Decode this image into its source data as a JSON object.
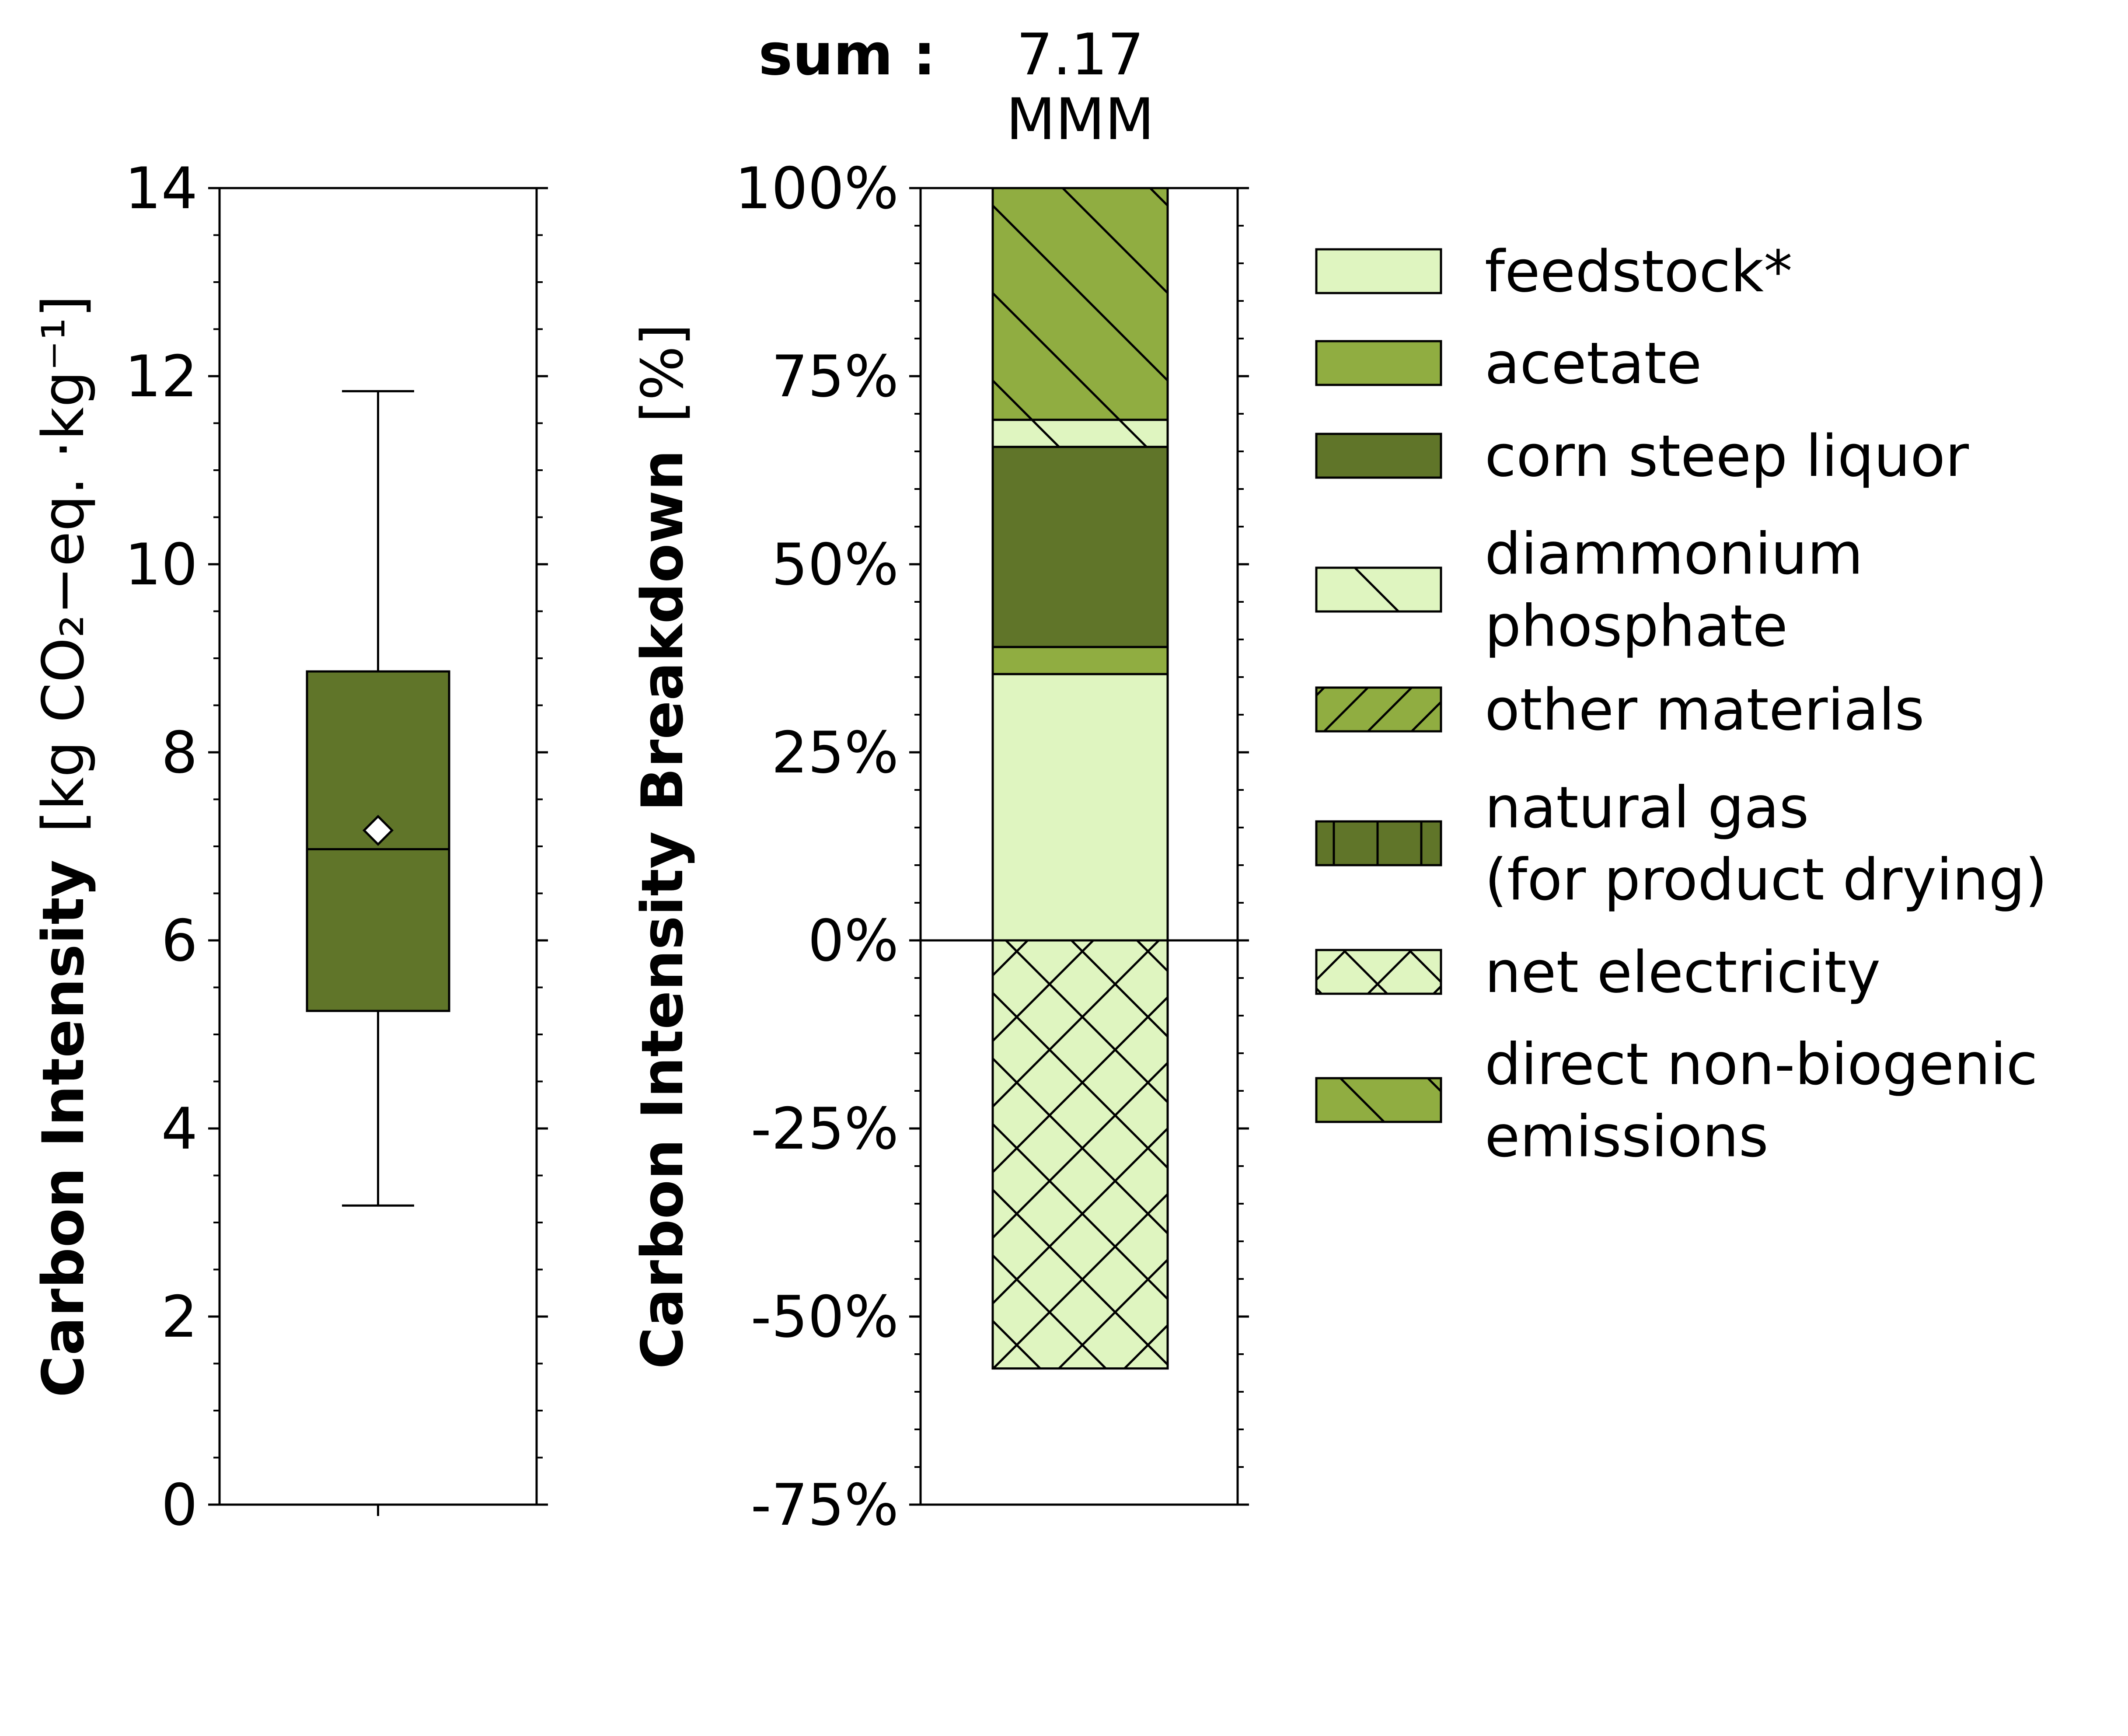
{
  "chart_data": [
    {
      "type": "box",
      "ylabel_bold": "Carbon Intensity",
      "ylabel_unit": "[kg CO₂−eq. ·kg⁻¹]",
      "ylim": [
        0,
        14
      ],
      "yticks": [
        "0",
        "2",
        "4",
        "6",
        "8",
        "10",
        "12",
        "14"
      ],
      "box": {
        "whisker_low": 3.18,
        "q1": 5.25,
        "median": 6.97,
        "q3": 8.86,
        "whisker_high": 11.84,
        "mean": 7.17
      },
      "box_color": "#607529"
    },
    {
      "type": "bar",
      "stacked": true,
      "ylabel_bold": "Carbon Intensity Breakdown",
      "ylabel_unit": "[%]",
      "ylim": [
        -75,
        100
      ],
      "yticks": [
        "-75%",
        "-50%",
        "-25%",
        "0%",
        "25%",
        "50%",
        "75%",
        "100%"
      ],
      "sum_label": "sum :",
      "sum_value": "7.17",
      "sum_unit": "MMM",
      "series": [
        {
          "name": "feedstock*",
          "value": 35.4,
          "color": "#dff5c0",
          "hatch": "none"
        },
        {
          "name": "acetate",
          "value": 3.6,
          "color": "#90ad41",
          "hatch": "none"
        },
        {
          "name": "corn steep liquor",
          "value": 26.6,
          "color": "#607529",
          "hatch": "none"
        },
        {
          "name": "diammonium phosphate",
          "value": 3.6,
          "color": "#dff5c0",
          "hatch": "back"
        },
        {
          "name": "other materials",
          "value": 0,
          "color": "#90ad41",
          "hatch": "fwd"
        },
        {
          "name": "natural gas (for product drying)",
          "value": 0,
          "color": "#607529",
          "hatch": "vert"
        },
        {
          "name": "net electricity",
          "value": -56.9,
          "color": "#dff5c0",
          "hatch": "cross"
        },
        {
          "name": "direct non-biogenic emissions",
          "value": 30.8,
          "color": "#90ad41",
          "hatch": "back"
        }
      ]
    }
  ],
  "legend": [
    {
      "lines": [
        "feedstock*"
      ]
    },
    {
      "lines": [
        "acetate"
      ]
    },
    {
      "lines": [
        "corn steep liquor"
      ]
    },
    {
      "lines": [
        "diammonium",
        "phosphate"
      ]
    },
    {
      "lines": [
        "other materials"
      ]
    },
    {
      "lines": [
        "natural gas",
        "(for product drying)"
      ]
    },
    {
      "lines": [
        "net electricity"
      ]
    },
    {
      "lines": [
        "direct non-biogenic",
        "emissions"
      ]
    }
  ]
}
